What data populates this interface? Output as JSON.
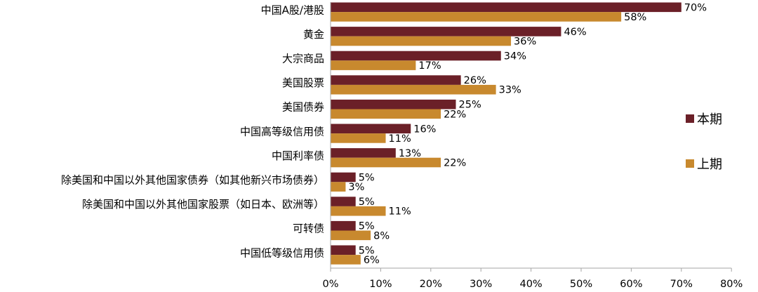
{
  "chart_data": {
    "type": "bar",
    "orientation": "horizontal",
    "categories": [
      "中国A股/港股",
      "黄金",
      "大宗商品",
      "美国股票",
      "美国债券",
      "中国高等级信用债",
      "中国利率债",
      "除美国和中国以外其他国家债券（如其他新兴市场债券）",
      "除美国和中国以外其他国家股票（如日本、欧洲等）",
      "可转债",
      "中国低等级信用债"
    ],
    "series": [
      {
        "name": "本期",
        "color": "#6B2028",
        "values": [
          70,
          46,
          34,
          26,
          25,
          16,
          13,
          5,
          5,
          5,
          5
        ]
      },
      {
        "name": "上期",
        "color": "#C8892E",
        "values": [
          58,
          36,
          17,
          33,
          22,
          11,
          22,
          3,
          11,
          8,
          6
        ]
      }
    ],
    "value_labels": [
      [
        "70%",
        "46%",
        "34%",
        "26%",
        "25%",
        "16%",
        "13%",
        "5%",
        "5%",
        "5%",
        "5%"
      ],
      [
        "58%",
        "36%",
        "17%",
        "33%",
        "22%",
        "11%",
        "22%",
        "3%",
        "11%",
        "8%",
        "6%"
      ]
    ],
    "x_ticks": [
      {
        "value": 0,
        "label": "0%"
      },
      {
        "value": 10,
        "label": "10%"
      },
      {
        "value": 20,
        "label": "20%"
      },
      {
        "value": 30,
        "label": "30%"
      },
      {
        "value": 40,
        "label": "40%"
      },
      {
        "value": 50,
        "label": "50%"
      },
      {
        "value": 60,
        "label": "60%"
      },
      {
        "value": 70,
        "label": "70%"
      },
      {
        "value": 80,
        "label": "80%"
      }
    ],
    "xlim": [
      0,
      80
    ],
    "grid": false,
    "legend_position": "right"
  }
}
